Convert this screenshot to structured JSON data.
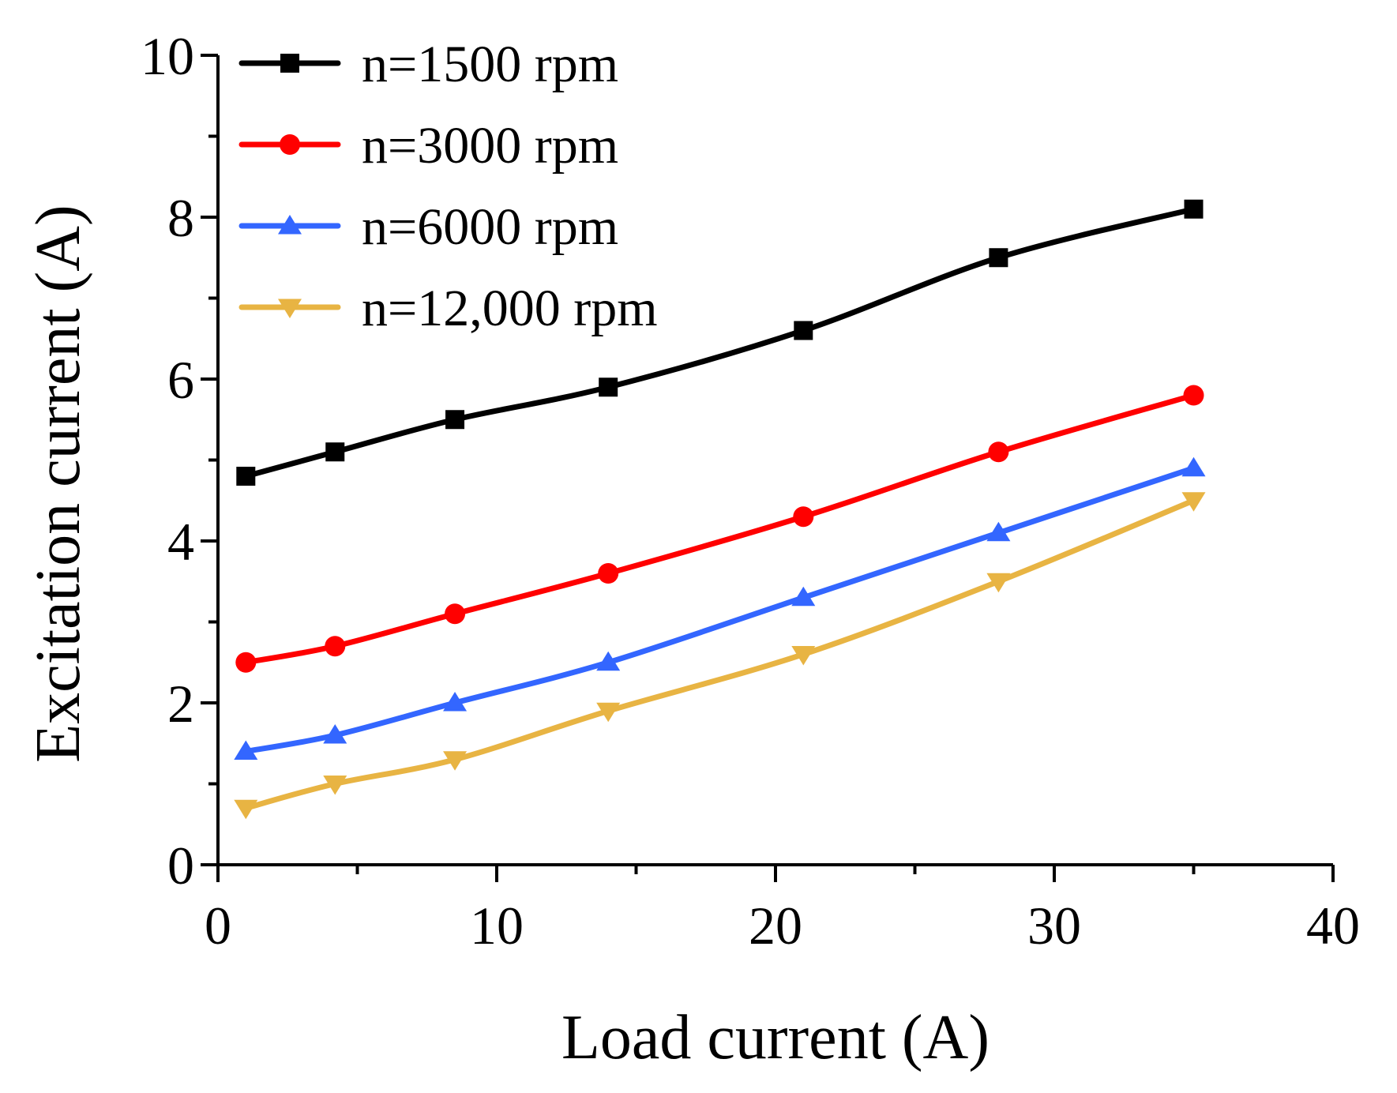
{
  "chart_data": {
    "type": "line",
    "title": "",
    "xlabel": "Load current (A)",
    "ylabel": "Excitation current (A)",
    "xlim": [
      0,
      40
    ],
    "ylim": [
      0,
      10
    ],
    "xticks": [
      0,
      10,
      20,
      30,
      40
    ],
    "yticks": [
      0,
      2,
      4,
      6,
      8,
      10
    ],
    "xtick_labels": [
      "0",
      "10",
      "20",
      "30",
      "40"
    ],
    "ytick_labels": [
      "0",
      "2",
      "4",
      "6",
      "8",
      "10"
    ],
    "legend_position": "top-left",
    "grid": false,
    "series": [
      {
        "name": "n=1500 rpm",
        "color": "#000000",
        "marker": "square",
        "x": [
          1,
          4.2,
          8.5,
          14,
          21,
          28,
          35
        ],
        "y": [
          4.8,
          5.1,
          5.5,
          5.9,
          6.6,
          7.5,
          8.1
        ]
      },
      {
        "name": "n=3000 rpm",
        "color": "#ff0000",
        "marker": "circle",
        "x": [
          1,
          4.2,
          8.5,
          14,
          21,
          28,
          35
        ],
        "y": [
          2.5,
          2.7,
          3.1,
          3.6,
          4.3,
          5.1,
          5.8
        ]
      },
      {
        "name": "n=6000 rpm",
        "color": "#3366ff",
        "marker": "triangle-up",
        "x": [
          1,
          4.2,
          8.5,
          14,
          21,
          28,
          35
        ],
        "y": [
          1.4,
          1.6,
          2.0,
          2.5,
          3.3,
          4.1,
          4.9
        ]
      },
      {
        "name": "n=12,000 rpm",
        "color": "#e8b443",
        "marker": "triangle-down",
        "x": [
          1,
          4.2,
          8.5,
          14,
          21,
          28,
          35
        ],
        "y": [
          0.7,
          1.0,
          1.3,
          1.9,
          2.6,
          3.5,
          4.5
        ]
      }
    ]
  }
}
